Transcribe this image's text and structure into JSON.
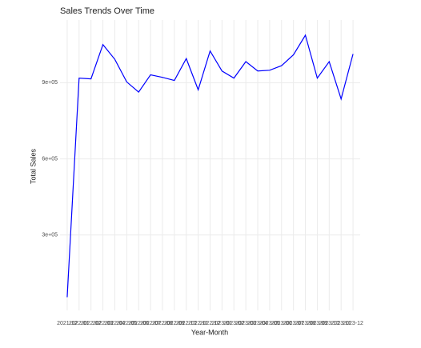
{
  "chart_data": {
    "type": "line",
    "title": "Sales Trends Over Time",
    "x_label": "Year-Month",
    "y_label": "Total Sales",
    "categories": [
      "2021-12",
      "2022-01",
      "2022-02",
      "2022-03",
      "2022-04",
      "2022-05",
      "2022-06",
      "2022-07",
      "2022-08",
      "2022-09",
      "2022-10",
      "2022-11",
      "2022-12",
      "2023-01",
      "2023-02",
      "2023-03",
      "2023-04",
      "2023-05",
      "2023-06",
      "2023-07",
      "2023-08",
      "2023-09",
      "2023-10",
      "2023-11",
      "2023-12"
    ],
    "series": [
      {
        "name": "Total Sales",
        "color": "#0000ff",
        "values": [
          55000,
          918000,
          915000,
          1050000,
          992000,
          903000,
          863000,
          931000,
          921000,
          909000,
          995000,
          872000,
          1025000,
          946000,
          918000,
          983000,
          946000,
          949000,
          967000,
          1010000,
          1087000,
          918000,
          983000,
          836000,
          1013000
        ]
      }
    ],
    "ylim": [
      3000,
      1147000
    ],
    "yticks": [
      {
        "value": 300000,
        "label": "3e+05"
      },
      {
        "value": 600000,
        "label": "6e+05"
      },
      {
        "value": 900000,
        "label": "9e+05"
      }
    ],
    "grid": true
  }
}
